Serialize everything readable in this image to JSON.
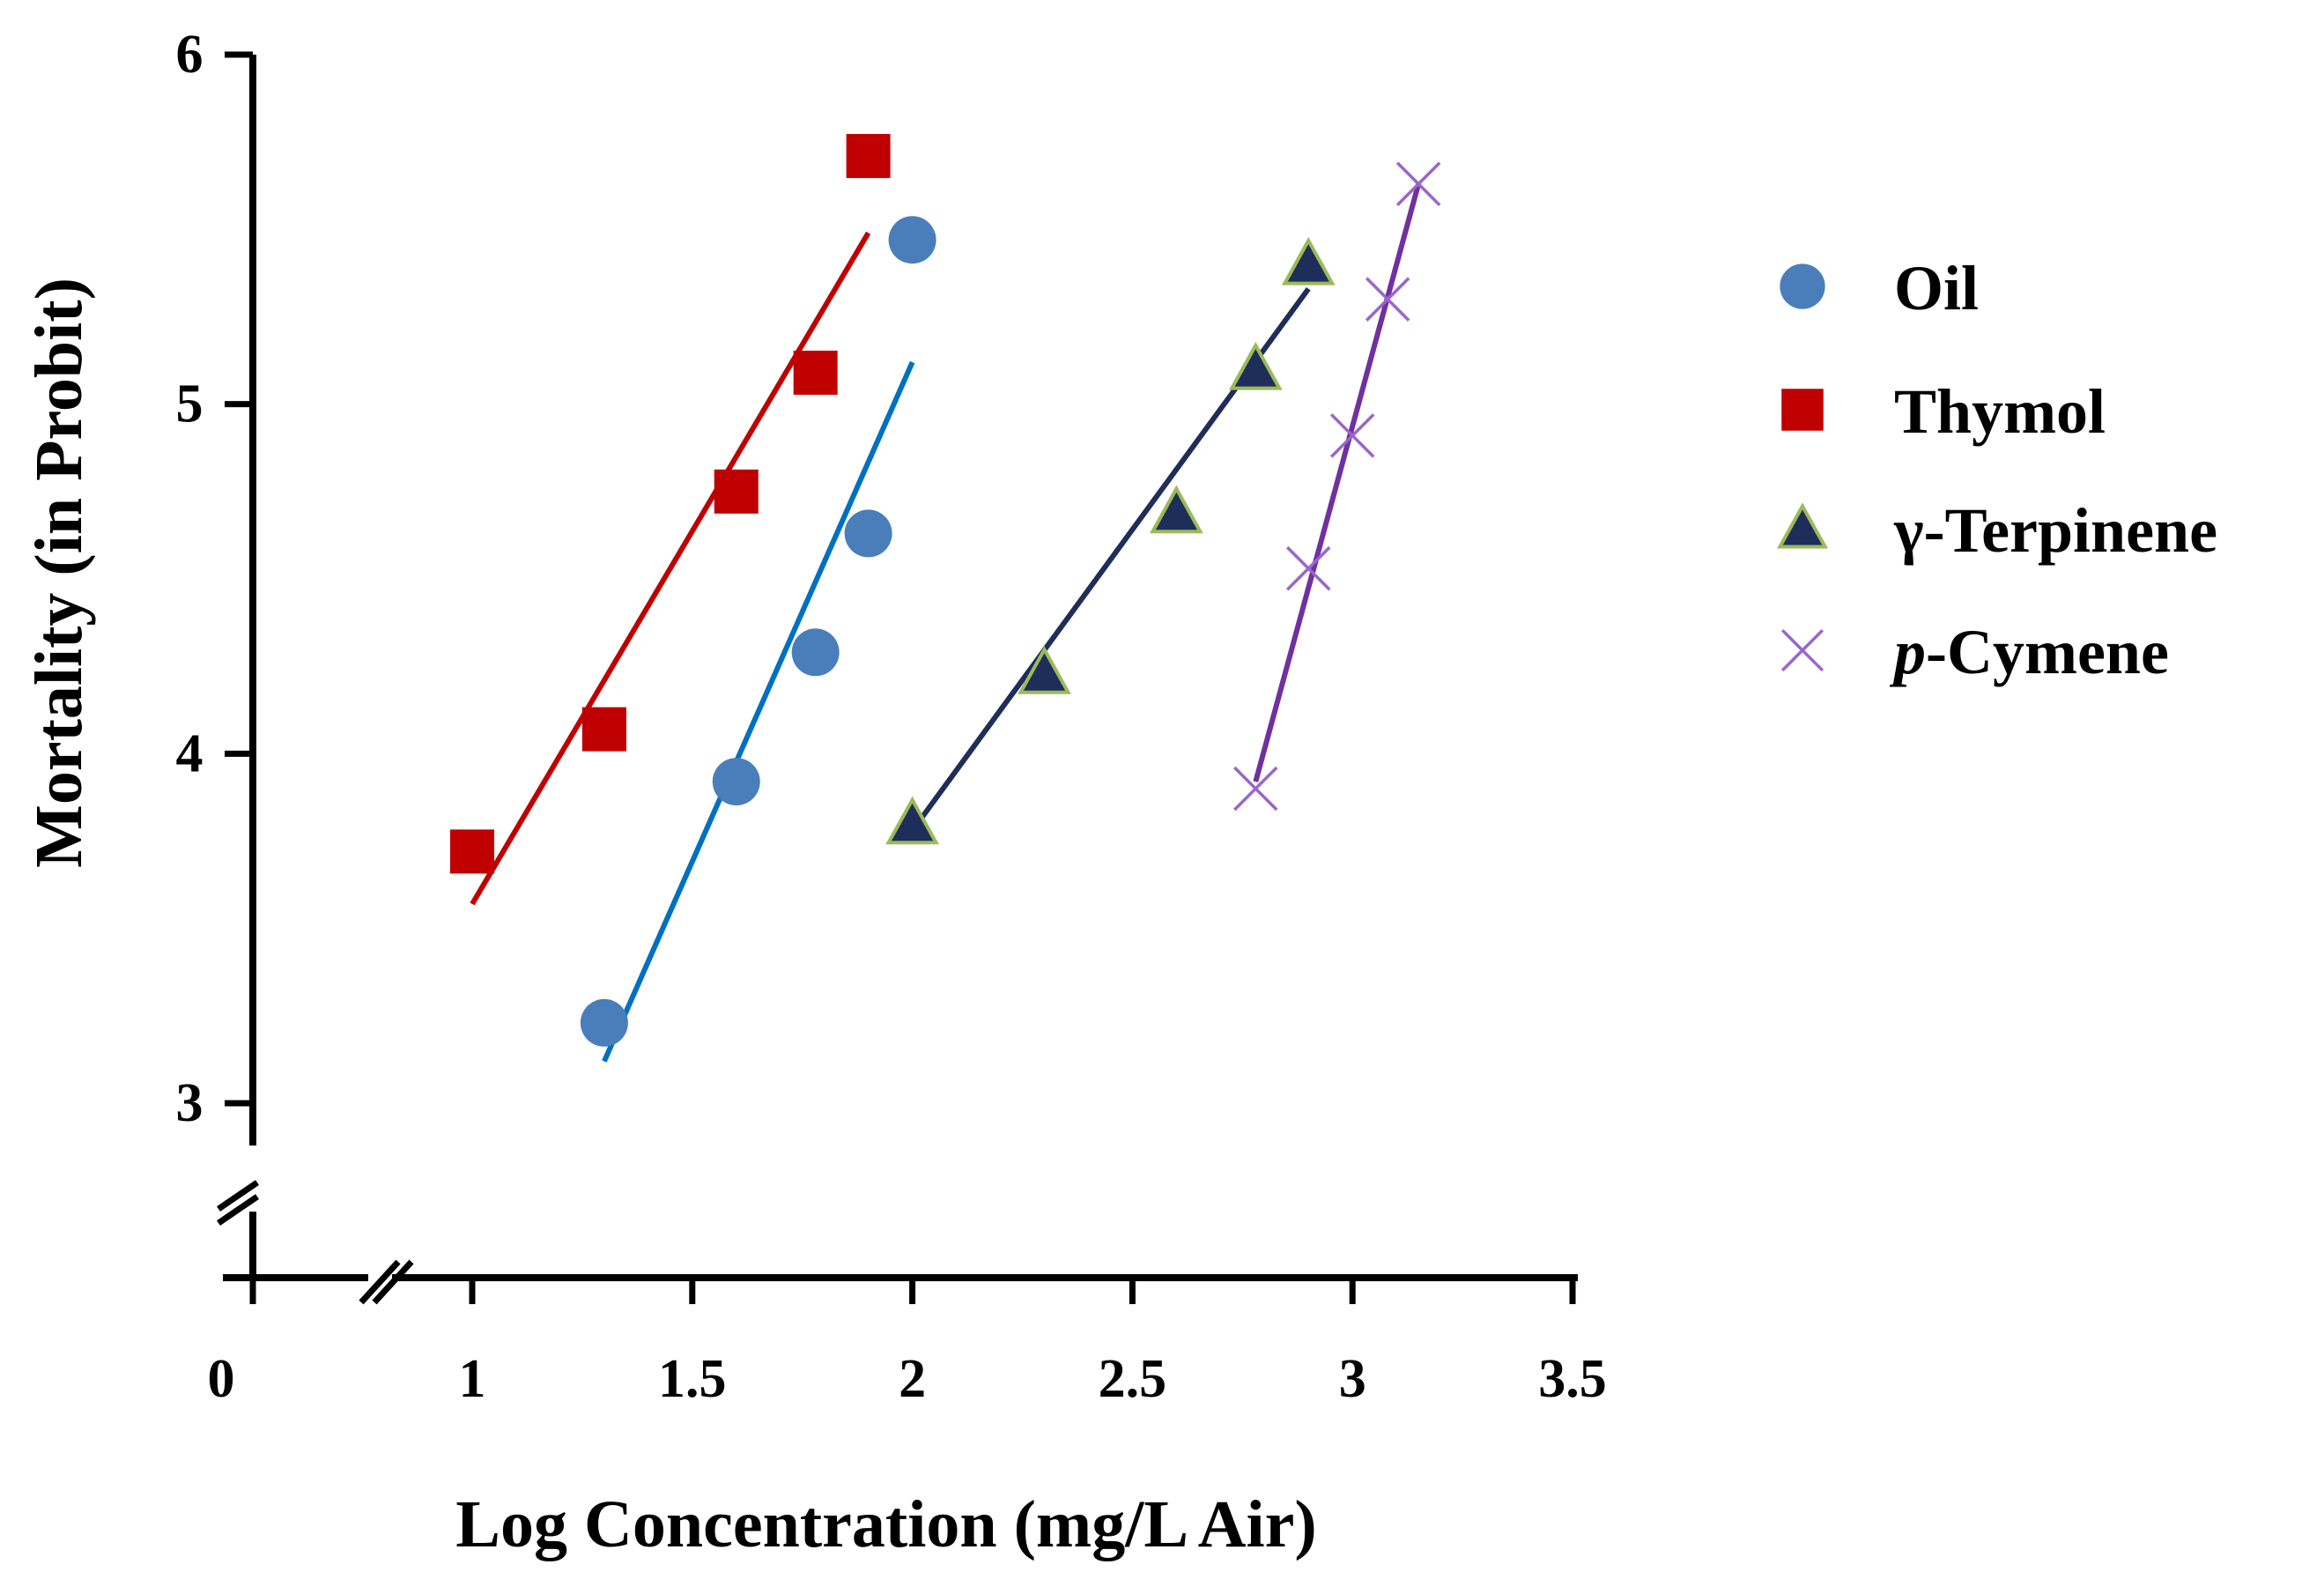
{
  "chart_data": {
    "type": "scatter",
    "title": "",
    "xlabel": "Log Concentration (mg/L Air)",
    "ylabel": "Mortality (in Probit)",
    "xlim": [
      0,
      3.5
    ],
    "ylim": [
      3,
      6
    ],
    "x_ticks": [
      0,
      1,
      1.5,
      2,
      2.5,
      3,
      3.5
    ],
    "x_tick_labels": [
      "0",
      "1",
      "1.5",
      "2",
      "2.5",
      "3",
      "3.5"
    ],
    "y_ticks": [
      3,
      4,
      5,
      6
    ],
    "y_tick_labels": [
      "3",
      "4",
      "5",
      "6"
    ],
    "axis_break": true,
    "grid": false,
    "legend_position": "right",
    "series": [
      {
        "name": "Oil",
        "marker": "circle",
        "color": "#4a7ebb",
        "line_color": "#0070c0",
        "x": [
          1.3,
          1.6,
          1.78,
          1.9,
          2.0
        ],
        "y": [
          3.23,
          3.92,
          4.29,
          4.63,
          5.47
        ],
        "fit": [
          [
            1.3,
            3.12
          ],
          [
            2.0,
            5.12
          ]
        ]
      },
      {
        "name": "Thymol",
        "marker": "square",
        "color": "#c00000",
        "line_color": "#c00000",
        "x": [
          1.0,
          1.3,
          1.6,
          1.78,
          1.9
        ],
        "y": [
          3.72,
          4.07,
          4.75,
          5.09,
          5.71
        ],
        "fit": [
          [
            1.0,
            3.57
          ],
          [
            1.9,
            5.49
          ]
        ]
      },
      {
        "name": "γ-Terpinene",
        "marker": "triangle",
        "color": "#1f2d5a",
        "edge_color": "#9bbb59",
        "line_color": "#1f2d5a",
        "x": [
          2.0,
          2.3,
          2.6,
          2.78,
          2.9
        ],
        "y": [
          3.8,
          4.23,
          4.69,
          5.1,
          5.4
        ],
        "fit": [
          [
            2.0,
            3.78
          ],
          [
            2.9,
            5.33
          ]
        ]
      },
      {
        "name": "p-Cymene",
        "name_prefix": "p",
        "name_suffix": "-Cymene",
        "marker": "x",
        "color": "#9966cc",
        "line_color": "#7030a0",
        "x": [
          2.78,
          2.9,
          3.0,
          3.08,
          3.15
        ],
        "y": [
          3.9,
          4.53,
          4.91,
          5.3,
          5.63
        ],
        "fit": [
          [
            2.78,
            3.92
          ],
          [
            3.15,
            5.63
          ]
        ]
      }
    ]
  }
}
